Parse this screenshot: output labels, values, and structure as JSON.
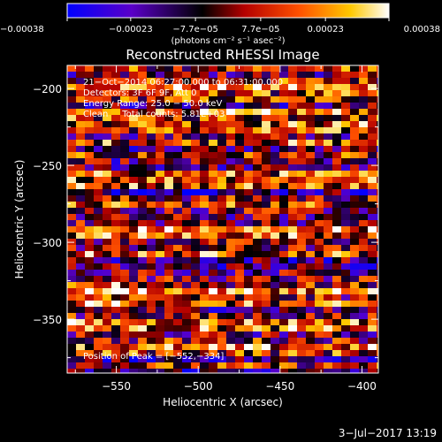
{
  "chart_data": {
    "type": "heatmap",
    "title": "Reconstructed RHESSI Image",
    "xlabel": "Heliocentric X (arcsec)",
    "ylabel": "Heliocentric Y (arcsec)",
    "xlim": [
      -580,
      -390
    ],
    "ylim": [
      -385,
      -185
    ],
    "x_ticks": [
      -550,
      -500,
      -450,
      -400
    ],
    "x_tick_labels": [
      "−550",
      "−500",
      "−450",
      "−400"
    ],
    "y_ticks": [
      -200,
      -250,
      -300,
      -350
    ],
    "y_tick_labels": [
      "−200",
      "−250",
      "−300",
      "−350"
    ],
    "colorbar": {
      "min": -0.00038,
      "max": 0.00038,
      "ticks": [
        -0.00038,
        -0.00023,
        -7.7e-05,
        7.7e-05,
        0.00023,
        0.00038
      ],
      "tick_labels": [
        "−0.00038",
        "−0.00023",
        "−7.7e−05",
        "7.7e−05",
        "0.00023",
        "0.00038"
      ],
      "unit": "(photons cm⁻² s⁻¹ asec⁻²)",
      "colormap": [
        "#0000ff",
        "#5a00c8",
        "#000000",
        "#b40000",
        "#ff5000",
        "#ffc800",
        "#ffffff"
      ]
    },
    "annotations": [
      "21−Oct−2014 06:27:00.000 to 06:31:00.000",
      "Detectors: 3F 6F 9F, Att 0",
      "Energy Range: 25.0 − 50.0 keV",
      "Clean     Total counts: 5.81E+03"
    ],
    "peak_label": "Position of Peak = [−552,−334]",
    "peak_position": [
      -552,
      -334
    ],
    "total_counts": 5810,
    "energy_range_kev": [
      25.0,
      50.0
    ],
    "grid": false
  },
  "footer": {
    "date": "3−Jul−2017 13:19"
  }
}
